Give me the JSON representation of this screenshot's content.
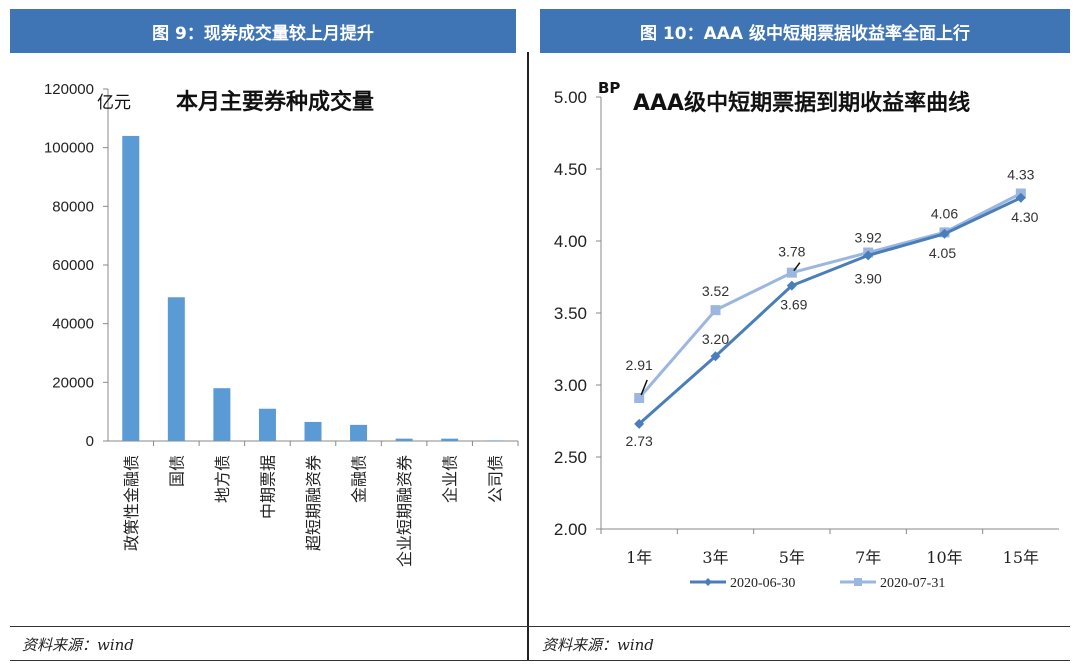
{
  "left_panel": {
    "header": "图 9：现券成交量较上月提升",
    "source": "资料来源：wind"
  },
  "right_panel": {
    "header": "图 10：AAA 级中短期票据收益率全面上行",
    "source": "资料来源：wind"
  },
  "chart_data": [
    {
      "type": "bar",
      "title": "本月主要券种成交量",
      "unit": "亿元",
      "categories": [
        "政策性金融债",
        "国债",
        "地方债",
        "中期票据",
        "超短期融资券",
        "金融债",
        "企业短期融资券",
        "企业债",
        "公司债"
      ],
      "values": [
        104000,
        49000,
        18000,
        11000,
        6500,
        5500,
        800,
        800,
        200
      ],
      "ylim": [
        0,
        120000
      ],
      "yticks": [
        0,
        20000,
        40000,
        60000,
        80000,
        100000,
        120000
      ],
      "ytick_labels": [
        "0",
        "20000",
        "40000",
        "60000",
        "80000",
        "100000",
        "120000"
      ],
      "color": "#5b9bd5",
      "grid": false
    },
    {
      "type": "line",
      "title": "AAA级中短期票据到期收益率曲线",
      "unit": "BP",
      "categories": [
        "1年",
        "3年",
        "5年",
        "7年",
        "10年",
        "15年"
      ],
      "ylim": [
        2.0,
        5.0
      ],
      "yticks": [
        2.0,
        2.5,
        3.0,
        3.5,
        4.0,
        4.5,
        5.0
      ],
      "ytick_labels": [
        "2.00",
        "2.50",
        "3.00",
        "3.50",
        "4.00",
        "4.50",
        "5.00"
      ],
      "series": [
        {
          "name": "2020-06-30",
          "values": [
            2.73,
            3.2,
            3.69,
            3.9,
            4.05,
            4.3
          ],
          "labels": [
            "2.73",
            "3.20",
            "3.69",
            "3.90",
            "4.05",
            "4.30"
          ],
          "color": "#4a7ebb",
          "marker": "diamond"
        },
        {
          "name": "2020-07-31",
          "values": [
            2.91,
            3.52,
            3.78,
            3.92,
            4.06,
            4.33
          ],
          "labels": [
            "2.91",
            "3.52",
            "3.78",
            "3.92",
            "4.06",
            "4.33"
          ],
          "color": "#9bb7e0",
          "marker": "square"
        }
      ],
      "legend": "bottom",
      "grid": false
    }
  ]
}
